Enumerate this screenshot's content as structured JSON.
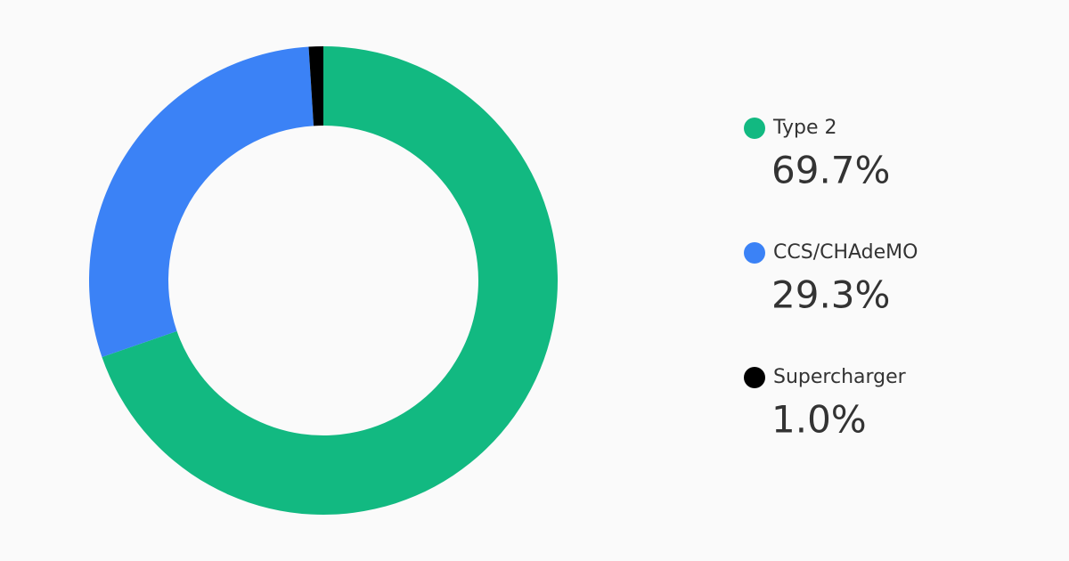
{
  "chart_data": {
    "type": "donut",
    "categories": [
      "Type 2",
      "CCS/CHAdeMO",
      "Supercharger"
    ],
    "values": [
      69.7,
      29.3,
      1.0
    ],
    "value_labels": [
      "69.7%",
      "29.3%",
      "1.0%"
    ],
    "colors": [
      "#12b981",
      "#3b82f6",
      "#000000"
    ]
  }
}
